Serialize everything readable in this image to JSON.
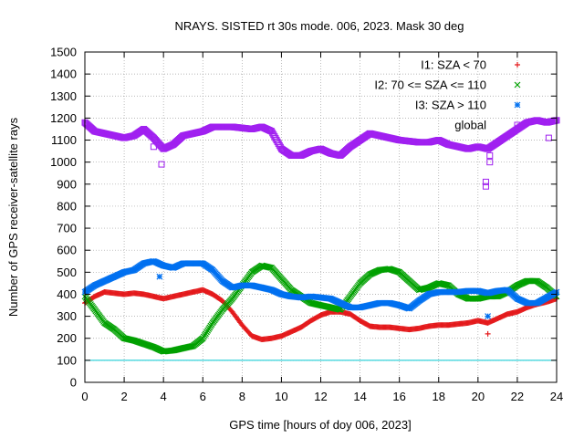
{
  "chart_data": {
    "type": "scatter",
    "title": "NRAYS. SISTED rt 30s mode. 006, 2023. Mask 30 deg",
    "xlabel": "GPS time [hours of doy 006, 2023]",
    "ylabel": "Number of GPS receiver-satellite rays",
    "xlim": [
      0,
      24
    ],
    "ylim": [
      0,
      1500
    ],
    "xticks": [
      0,
      2,
      4,
      6,
      8,
      10,
      12,
      14,
      16,
      18,
      20,
      22,
      24
    ],
    "yticks": [
      0,
      100,
      200,
      300,
      400,
      500,
      600,
      700,
      800,
      900,
      1000,
      1100,
      1200,
      1300,
      1400,
      1500
    ],
    "grid": true,
    "legend_position": "top-right",
    "reference_line": {
      "y": 100,
      "color": "#00c8d0"
    },
    "series": [
      {
        "name": "I1: SZA < 70",
        "marker": "plus",
        "color": "#e41a1c",
        "x": [
          0,
          0.5,
          1,
          1.5,
          2,
          2.5,
          3,
          3.5,
          4,
          4.5,
          5,
          5.5,
          6,
          6.5,
          7,
          7.5,
          8,
          8.5,
          9,
          9.5,
          10,
          10.5,
          11,
          11.5,
          12,
          12.5,
          13,
          13.5,
          14,
          14.5,
          15,
          15.5,
          16,
          16.5,
          17,
          17.5,
          18,
          18.5,
          19,
          19.5,
          20,
          20.5,
          21,
          21.5,
          22,
          22.5,
          23,
          23.5,
          24
        ],
        "y": [
          360,
          390,
          410,
          405,
          400,
          405,
          400,
          390,
          380,
          390,
          400,
          410,
          420,
          400,
          370,
          320,
          260,
          210,
          195,
          200,
          210,
          230,
          250,
          280,
          305,
          320,
          320,
          310,
          280,
          255,
          250,
          250,
          245,
          240,
          245,
          255,
          260,
          260,
          265,
          270,
          280,
          270,
          290,
          310,
          320,
          340,
          355,
          365,
          380
        ],
        "outliers": [
          [
            20.5,
            220
          ]
        ]
      },
      {
        "name": "I2: 70 <= SZA <= 110",
        "marker": "cross",
        "color": "#00a000",
        "x": [
          0,
          0.5,
          1,
          1.5,
          2,
          2.5,
          3,
          3.5,
          4,
          4.5,
          5,
          5.5,
          6,
          6.5,
          7,
          7.5,
          8,
          8.5,
          9,
          9.5,
          10,
          10.5,
          11,
          11.5,
          12,
          12.5,
          13,
          13.5,
          14,
          14.5,
          15,
          15.5,
          16,
          16.5,
          17,
          17.5,
          18,
          18.5,
          19,
          19.5,
          20,
          20.5,
          21,
          21.5,
          22,
          22.5,
          23,
          23.5,
          24
        ],
        "y": [
          390,
          330,
          270,
          240,
          200,
          190,
          175,
          160,
          140,
          145,
          155,
          165,
          200,
          270,
          330,
          380,
          440,
          500,
          530,
          520,
          470,
          420,
          390,
          360,
          350,
          340,
          330,
          390,
          450,
          490,
          510,
          515,
          500,
          460,
          420,
          430,
          450,
          440,
          400,
          380,
          380,
          390,
          390,
          410,
          440,
          460,
          460,
          430,
          390
        ]
      },
      {
        "name": "I3: SZA > 110",
        "marker": "star",
        "color": "#0070f0",
        "x": [
          0,
          0.5,
          1,
          1.5,
          2,
          2.5,
          3,
          3.5,
          4,
          4.5,
          5,
          5.5,
          6,
          6.5,
          7,
          7.5,
          8,
          8.5,
          9,
          9.5,
          10,
          10.5,
          11,
          11.5,
          12,
          12.5,
          13,
          13.5,
          14,
          14.5,
          15,
          15.5,
          16,
          16.5,
          17,
          17.5,
          18,
          18.5,
          19,
          19.5,
          20,
          20.5,
          21,
          21.5,
          22,
          22.5,
          23,
          23.5,
          24
        ],
        "y": [
          410,
          440,
          460,
          480,
          500,
          510,
          540,
          550,
          530,
          520,
          540,
          540,
          540,
          510,
          460,
          430,
          440,
          440,
          430,
          420,
          400,
          390,
          385,
          390,
          385,
          380,
          360,
          340,
          340,
          350,
          360,
          360,
          350,
          335,
          370,
          400,
          410,
          410,
          410,
          415,
          415,
          405,
          415,
          420,
          380,
          360,
          360,
          385,
          410
        ],
        "outliers": [
          [
            3.8,
            480
          ],
          [
            20.5,
            300
          ]
        ]
      },
      {
        "name": "global",
        "marker": "square",
        "color": "#a020f0",
        "x": [
          0,
          0.5,
          1,
          1.5,
          2,
          2.5,
          3,
          3.5,
          4,
          4.5,
          5,
          5.5,
          6,
          6.5,
          7,
          7.5,
          8,
          8.5,
          9,
          9.5,
          10,
          10.5,
          11,
          11.5,
          12,
          12.5,
          13,
          13.5,
          14,
          14.5,
          15,
          15.5,
          16,
          16.5,
          17,
          17.5,
          18,
          18.5,
          19,
          19.5,
          20,
          20.5,
          21,
          21.5,
          22,
          22.5,
          23,
          23.5,
          24
        ],
        "y": [
          1180,
          1140,
          1130,
          1120,
          1110,
          1120,
          1150,
          1110,
          1060,
          1080,
          1120,
          1130,
          1140,
          1160,
          1160,
          1160,
          1155,
          1150,
          1160,
          1140,
          1060,
          1030,
          1030,
          1050,
          1060,
          1040,
          1030,
          1070,
          1100,
          1130,
          1120,
          1110,
          1100,
          1095,
          1090,
          1090,
          1100,
          1080,
          1070,
          1060,
          1070,
          1060,
          1090,
          1120,
          1150,
          1180,
          1190,
          1180,
          1190
        ],
        "outliers": [
          [
            3.5,
            1070
          ],
          [
            3.9,
            990
          ],
          [
            20.4,
            890
          ],
          [
            20.4,
            910
          ],
          [
            20.6,
            1000
          ],
          [
            20.6,
            1030
          ],
          [
            23.6,
            1110
          ]
        ]
      }
    ]
  }
}
